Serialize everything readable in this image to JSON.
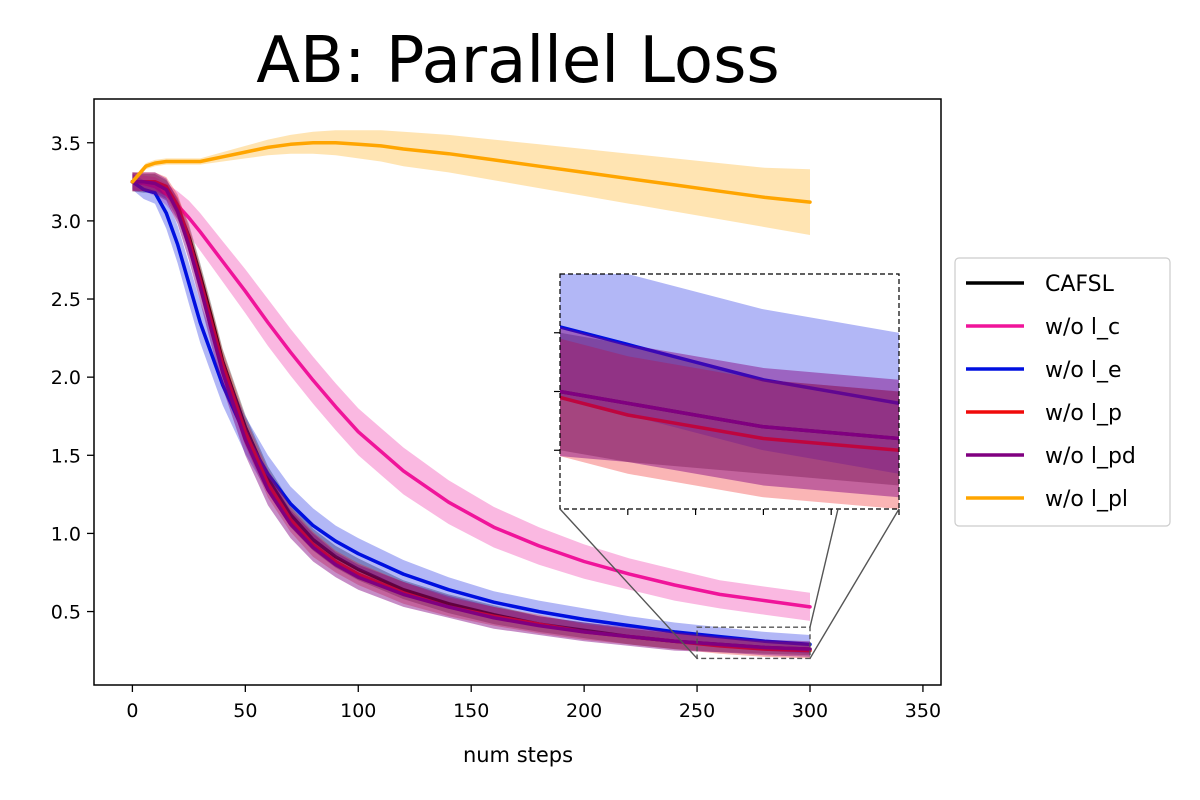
{
  "chart_data": {
    "type": "line",
    "title": "AB: Parallel Loss",
    "xlabel": "num steps",
    "ylabel": "",
    "xlim": [
      -17,
      358
    ],
    "ylim": [
      0.03,
      3.78
    ],
    "xticks": [
      0,
      50,
      100,
      150,
      200,
      250,
      300,
      350
    ],
    "yticks": [
      0.5,
      1.0,
      1.5,
      2.0,
      2.5,
      3.0,
      3.5
    ],
    "xtick_labels": [
      "0",
      "50",
      "100",
      "150",
      "200",
      "250",
      "300",
      "350"
    ],
    "ytick_labels": [
      "0.5",
      "1.0",
      "1.5",
      "2.0",
      "2.5",
      "3.0",
      "3.5"
    ],
    "legend_position": "outside-right",
    "series": [
      {
        "name": "CAFSL",
        "color": "#000000",
        "x": [
          0,
          5,
          10,
          15,
          20,
          25,
          30,
          35,
          40,
          50,
          60,
          70,
          80,
          90,
          100,
          120,
          140,
          160,
          180,
          200,
          220,
          240,
          260,
          280,
          300
        ],
        "y": [
          3.25,
          3.24,
          3.24,
          3.2,
          3.08,
          2.9,
          2.65,
          2.38,
          2.1,
          1.68,
          1.35,
          1.12,
          0.96,
          0.85,
          0.77,
          0.64,
          0.55,
          0.48,
          0.42,
          0.38,
          0.34,
          0.31,
          0.29,
          0.27,
          0.26
        ],
        "band": [
          0.06,
          0.06,
          0.06,
          0.06,
          0.07,
          0.08,
          0.08,
          0.08,
          0.08,
          0.08,
          0.08,
          0.08,
          0.07,
          0.07,
          0.07,
          0.06,
          0.06,
          0.06,
          0.05,
          0.05,
          0.05,
          0.05,
          0.05,
          0.04,
          0.04
        ],
        "fill_opacity": 0.3
      },
      {
        "name": "w/o l_c",
        "color": "#f0149a",
        "x": [
          0,
          5,
          10,
          15,
          20,
          25,
          30,
          40,
          50,
          60,
          70,
          80,
          90,
          100,
          120,
          140,
          160,
          180,
          200,
          220,
          240,
          260,
          280,
          300
        ],
        "y": [
          3.25,
          3.24,
          3.22,
          3.17,
          3.1,
          3.02,
          2.93,
          2.74,
          2.55,
          2.35,
          2.16,
          1.98,
          1.81,
          1.65,
          1.4,
          1.2,
          1.04,
          0.92,
          0.82,
          0.74,
          0.67,
          0.61,
          0.57,
          0.53
        ],
        "band": [
          0.05,
          0.05,
          0.06,
          0.07,
          0.09,
          0.11,
          0.12,
          0.13,
          0.14,
          0.15,
          0.15,
          0.15,
          0.15,
          0.15,
          0.15,
          0.14,
          0.13,
          0.12,
          0.11,
          0.1,
          0.1,
          0.09,
          0.09,
          0.09
        ],
        "fill_opacity": 0.3
      },
      {
        "name": "w/o l_e",
        "color": "#0010e0",
        "x": [
          0,
          5,
          10,
          15,
          20,
          25,
          30,
          40,
          50,
          60,
          70,
          80,
          90,
          100,
          120,
          140,
          160,
          180,
          200,
          220,
          240,
          260,
          280,
          300
        ],
        "y": [
          3.25,
          3.2,
          3.18,
          3.05,
          2.85,
          2.6,
          2.35,
          1.95,
          1.63,
          1.38,
          1.19,
          1.05,
          0.95,
          0.87,
          0.74,
          0.64,
          0.56,
          0.5,
          0.45,
          0.41,
          0.37,
          0.34,
          0.31,
          0.29
        ],
        "band": [
          0.05,
          0.06,
          0.07,
          0.1,
          0.12,
          0.13,
          0.13,
          0.13,
          0.12,
          0.12,
          0.11,
          0.11,
          0.1,
          0.1,
          0.09,
          0.08,
          0.07,
          0.07,
          0.07,
          0.06,
          0.06,
          0.06,
          0.06,
          0.06
        ],
        "fill_opacity": 0.3
      },
      {
        "name": "w/o l_p",
        "color": "#f00a0a",
        "x": [
          0,
          5,
          10,
          15,
          20,
          25,
          30,
          35,
          40,
          50,
          60,
          70,
          80,
          90,
          100,
          120,
          140,
          160,
          180,
          200,
          220,
          240,
          260,
          280,
          300
        ],
        "y": [
          3.25,
          3.25,
          3.25,
          3.22,
          3.1,
          2.88,
          2.62,
          2.35,
          2.08,
          1.65,
          1.32,
          1.09,
          0.93,
          0.82,
          0.74,
          0.62,
          0.53,
          0.47,
          0.42,
          0.37,
          0.34,
          0.31,
          0.28,
          0.26,
          0.25
        ],
        "band": [
          0.06,
          0.06,
          0.06,
          0.06,
          0.07,
          0.08,
          0.09,
          0.09,
          0.09,
          0.09,
          0.09,
          0.08,
          0.08,
          0.07,
          0.07,
          0.07,
          0.06,
          0.06,
          0.06,
          0.05,
          0.05,
          0.05,
          0.05,
          0.05,
          0.05
        ],
        "fill_opacity": 0.3
      },
      {
        "name": "w/o l_pd",
        "color": "#800080",
        "x": [
          0,
          5,
          10,
          15,
          20,
          25,
          30,
          35,
          40,
          50,
          60,
          70,
          80,
          90,
          100,
          120,
          140,
          160,
          180,
          200,
          220,
          240,
          260,
          280,
          300
        ],
        "y": [
          3.25,
          3.25,
          3.24,
          3.2,
          3.06,
          2.84,
          2.58,
          2.3,
          2.03,
          1.6,
          1.28,
          1.06,
          0.91,
          0.8,
          0.72,
          0.61,
          0.53,
          0.46,
          0.41,
          0.37,
          0.34,
          0.31,
          0.29,
          0.27,
          0.26
        ],
        "band": [
          0.06,
          0.06,
          0.07,
          0.07,
          0.08,
          0.09,
          0.1,
          0.1,
          0.1,
          0.1,
          0.1,
          0.09,
          0.09,
          0.08,
          0.08,
          0.08,
          0.07,
          0.07,
          0.06,
          0.06,
          0.06,
          0.06,
          0.05,
          0.05,
          0.05
        ],
        "fill_opacity": 0.45
      },
      {
        "name": "w/o l_pl",
        "color": "#ffa500",
        "x": [
          0,
          3,
          6,
          10,
          15,
          20,
          25,
          30,
          40,
          50,
          60,
          70,
          80,
          90,
          100,
          110,
          120,
          140,
          160,
          180,
          200,
          220,
          240,
          260,
          280,
          300
        ],
        "y": [
          3.25,
          3.3,
          3.35,
          3.37,
          3.38,
          3.38,
          3.38,
          3.38,
          3.41,
          3.44,
          3.47,
          3.49,
          3.5,
          3.5,
          3.49,
          3.48,
          3.46,
          3.43,
          3.39,
          3.35,
          3.31,
          3.27,
          3.23,
          3.19,
          3.15,
          3.12
        ],
        "band": [
          0.02,
          0.02,
          0.02,
          0.02,
          0.02,
          0.02,
          0.02,
          0.02,
          0.03,
          0.04,
          0.05,
          0.06,
          0.07,
          0.08,
          0.09,
          0.1,
          0.11,
          0.12,
          0.13,
          0.14,
          0.15,
          0.16,
          0.17,
          0.18,
          0.19,
          0.21
        ],
        "fill_opacity": 0.3
      }
    ],
    "inset": {
      "zoom_xlim": [
        250,
        300
      ],
      "zoom_ylim": [
        0.2,
        0.4
      ],
      "zoom_box_color": "#555555"
    }
  }
}
